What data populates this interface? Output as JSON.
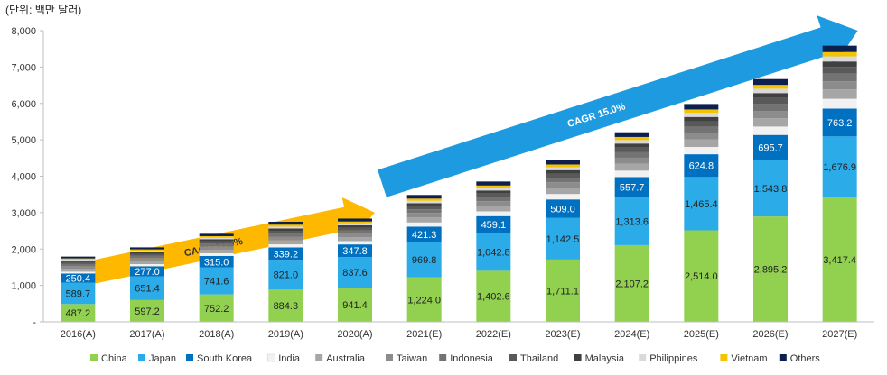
{
  "unit_label": "(단위: 백만 달러)",
  "chart_data": {
    "type": "bar",
    "stacked": true,
    "categories": [
      "2016(A)",
      "2017(A)",
      "2018(A)",
      "2019(A)",
      "2020(A)",
      "2021(E)",
      "2022(E)",
      "2023(E)",
      "2024(E)",
      "2025(E)",
      "2026(E)",
      "2027(E)"
    ],
    "ylim": [
      0,
      8000
    ],
    "yticks": [
      0,
      1000,
      2000,
      3000,
      4000,
      5000,
      6000,
      7000,
      8000
    ],
    "ytick_labels": [
      "-",
      "1,000",
      "2,000",
      "3,000",
      "4,000",
      "5,000",
      "6,000",
      "7,000",
      "8,000"
    ],
    "grid": false,
    "legend_position": "bottom",
    "series": [
      {
        "name": "China",
        "color": "#92D050",
        "labeled": true,
        "label_color": "#222222",
        "values": [
          487.2,
          597.2,
          752.2,
          884.3,
          941.4,
          1224.0,
          1402.6,
          1711.1,
          2107.2,
          2514.0,
          2895.2,
          3417.4
        ],
        "labels": [
          "487.2",
          "597.2",
          "752.2",
          "884.3",
          "941.4",
          "1,224.0",
          "1,402.6",
          "1,711.1",
          "2,107.2",
          "2,514.0",
          "2,895.2",
          "3,417.4"
        ]
      },
      {
        "name": "Japan",
        "color": "#2BACE8",
        "labeled": true,
        "label_color": "#222222",
        "values": [
          589.7,
          651.4,
          741.6,
          821.0,
          837.6,
          969.8,
          1042.8,
          1142.5,
          1313.6,
          1465.4,
          1543.8,
          1676.9
        ],
        "labels": [
          "589.7",
          "651.4",
          "741.6",
          "821.0",
          "837.6",
          "969.8",
          "1,042.8",
          "1,142.5",
          "1,313.6",
          "1,465.4",
          "1,543.8",
          "1,676.9"
        ]
      },
      {
        "name": "South Korea",
        "color": "#0070C0",
        "labeled": true,
        "label_color": "#ffffff",
        "values": [
          250.4,
          277.0,
          315.0,
          339.2,
          347.8,
          421.3,
          459.1,
          509.0,
          557.7,
          624.8,
          695.7,
          763.2
        ],
        "labels": [
          "250.4",
          "277.0",
          "315.0",
          "339.2",
          "347.8",
          "421.3",
          "459.1",
          "509.0",
          "557.7",
          "624.8",
          "695.7",
          "763.2"
        ]
      },
      {
        "name": "India",
        "color": "#F2F2F2",
        "labeled": false,
        "values": [
          50,
          60,
          75,
          85,
          90,
          115,
          130,
          150,
          175,
          200,
          230,
          270
        ]
      },
      {
        "name": "Australia",
        "color": "#A6A6A6",
        "labeled": false,
        "values": [
          80,
          90,
          100,
          110,
          110,
          140,
          150,
          170,
          190,
          210,
          230,
          260
        ]
      },
      {
        "name": "Taiwan",
        "color": "#8C8C8C",
        "labeled": false,
        "values": [
          70,
          75,
          90,
          100,
          100,
          120,
          130,
          150,
          165,
          180,
          200,
          220
        ]
      },
      {
        "name": "Indonesia",
        "color": "#737373",
        "labeled": false,
        "values": [
          60,
          65,
          75,
          85,
          85,
          100,
          110,
          130,
          150,
          170,
          190,
          210
        ]
      },
      {
        "name": "Thailand",
        "color": "#595959",
        "labeled": false,
        "values": [
          50,
          55,
          65,
          75,
          75,
          90,
          100,
          110,
          130,
          145,
          165,
          185
        ]
      },
      {
        "name": "Malaysia",
        "color": "#404040",
        "labeled": false,
        "values": [
          40,
          45,
          55,
          65,
          65,
          80,
          85,
          95,
          110,
          120,
          135,
          150
        ]
      },
      {
        "name": "Philippines",
        "color": "#D9D9D9",
        "labeled": false,
        "values": [
          35,
          40,
          45,
          55,
          55,
          65,
          70,
          80,
          95,
          110,
          120,
          140
        ]
      },
      {
        "name": "Vietnam",
        "color": "#F5C400",
        "labeled": false,
        "values": [
          30,
          35,
          40,
          50,
          50,
          60,
          65,
          75,
          85,
          95,
          105,
          120
        ]
      },
      {
        "name": "Others",
        "color": "#0D1F4D",
        "labeled": false,
        "values": [
          50,
          55,
          65,
          80,
          80,
          100,
          110,
          120,
          130,
          150,
          160,
          175
        ]
      }
    ],
    "annotations": [
      {
        "text": "CAGR  11.5%",
        "color": "#FFB800",
        "from_category": "2016(A)",
        "to_category": "2020(A)",
        "from_value": 1300,
        "to_value": 3000
      },
      {
        "text": "CAGR  15.0%",
        "color": "#1E9BE0",
        "from_category": "2020(E)",
        "to_category": "2027(E)",
        "from_value": 3800,
        "to_value": 8000
      }
    ]
  }
}
